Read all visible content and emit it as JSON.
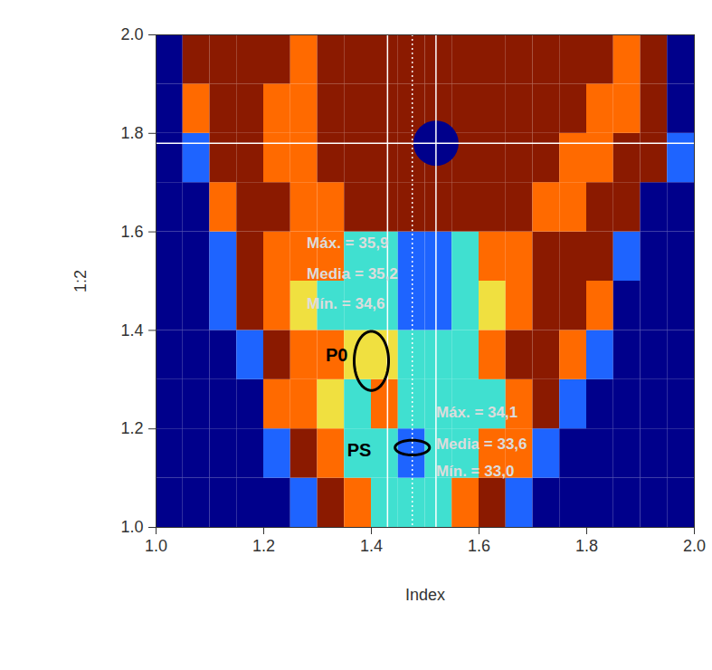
{
  "chart_data": {
    "type": "heatmap",
    "x_label": "Index",
    "y_label": "1:2",
    "xlim": [
      1,
      2
    ],
    "ylim": [
      1,
      2
    ],
    "xticks": [
      {
        "value": 1,
        "label": "1.0"
      },
      {
        "value": 1.2,
        "label": "1.2"
      },
      {
        "value": 1.4,
        "label": "1.4"
      },
      {
        "value": 1.6,
        "label": "1.6"
      },
      {
        "value": 1.8,
        "label": "1.8"
      },
      {
        "value": 2,
        "label": "2.0"
      }
    ],
    "yticks": [
      {
        "value": 1,
        "label": "1.0"
      },
      {
        "value": 1.2,
        "label": "1.2"
      },
      {
        "value": 1.4,
        "label": "1.4"
      },
      {
        "value": 1.6,
        "label": "1.6"
      },
      {
        "value": 1.8,
        "label": "1.8"
      },
      {
        "value": 2,
        "label": "2.0"
      }
    ],
    "colors": [
      "#00008b",
      "#1e64ff",
      "#40e0d0",
      "#f0e040",
      "#ff6a00",
      "#8b1a00"
    ],
    "cell_x_edges": [
      1,
      1.05,
      1.1,
      1.15,
      1.2,
      1.25,
      1.3,
      1.35,
      1.4,
      1.45,
      1.5,
      1.55,
      1.6,
      1.65,
      1.7,
      1.75,
      1.8,
      1.85,
      1.9,
      1.95,
      2
    ],
    "cell_y_edges": [
      1,
      1.1,
      1.2,
      1.3,
      1.4,
      1.5,
      1.6,
      1.7,
      1.8,
      1.9,
      2
    ],
    "cells": [
      [
        0,
        0,
        0,
        0,
        0,
        1,
        5,
        4,
        2,
        2,
        2,
        4,
        5,
        1,
        0,
        0,
        0,
        0,
        0,
        0
      ],
      [
        0,
        0,
        0,
        0,
        1,
        5,
        4,
        2,
        2,
        1,
        2,
        2,
        4,
        4,
        1,
        0,
        0,
        0,
        0,
        0
      ],
      [
        0,
        0,
        0,
        0,
        4,
        4,
        3,
        2,
        4,
        2,
        2,
        2,
        2,
        4,
        5,
        1,
        0,
        0,
        0,
        0
      ],
      [
        0,
        0,
        0,
        1,
        5,
        4,
        4,
        3,
        3,
        2,
        2,
        2,
        4,
        5,
        5,
        4,
        1,
        0,
        0,
        0
      ],
      [
        0,
        0,
        1,
        5,
        4,
        3,
        2,
        2,
        2,
        1,
        1,
        2,
        3,
        4,
        5,
        5,
        4,
        0,
        0,
        0
      ],
      [
        0,
        0,
        1,
        5,
        4,
        4,
        4,
        2,
        2,
        1,
        1,
        2,
        4,
        4,
        5,
        5,
        5,
        1,
        0,
        0
      ],
      [
        0,
        0,
        4,
        5,
        5,
        4,
        4,
        5,
        5,
        5,
        5,
        5,
        5,
        5,
        4,
        4,
        5,
        5,
        0,
        0
      ],
      [
        0,
        1,
        5,
        5,
        4,
        4,
        5,
        5,
        5,
        5,
        5,
        5,
        5,
        5,
        5,
        4,
        4,
        5,
        5,
        1
      ],
      [
        0,
        4,
        5,
        5,
        4,
        4,
        5,
        5,
        5,
        5,
        5,
        5,
        5,
        5,
        5,
        5,
        4,
        4,
        5,
        0
      ],
      [
        0,
        5,
        5,
        5,
        5,
        4,
        5,
        5,
        5,
        5,
        5,
        5,
        5,
        5,
        5,
        5,
        5,
        4,
        5,
        0
      ]
    ],
    "hlines": [
      1.78
    ],
    "vlines": [
      {
        "x": 1.43,
        "line_style": "solid"
      },
      {
        "x": 1.476,
        "line_style": "dotted"
      },
      {
        "x": 1.52,
        "line_style": "solid"
      }
    ],
    "circles": [
      {
        "x": 1.52,
        "y": 1.78,
        "r": 0.042,
        "color": "#00008b"
      }
    ],
    "ellipses": [
      {
        "label": "P0",
        "x": 1.4,
        "y": 1.338,
        "rx": 0.032,
        "ry": 0.06,
        "label_x": 1.315,
        "label_y": 1.35
      },
      {
        "label": "PS",
        "x": 1.476,
        "y": 1.162,
        "rx": 0.032,
        "ry": 0.015,
        "label_x": 1.355,
        "label_y": 1.156
      }
    ],
    "annotations": [
      {
        "text": "Máx. = 35,9",
        "x": 1.28,
        "y": 1.577
      },
      {
        "text": "Media = 35,2",
        "x": 1.28,
        "y": 1.515
      },
      {
        "text": "Mín. = 34,6",
        "x": 1.28,
        "y": 1.454
      },
      {
        "text": "Máx. = 34,1",
        "x": 1.52,
        "y": 1.233
      },
      {
        "text": "Media = 33,6",
        "x": 1.52,
        "y": 1.169
      },
      {
        "text": "Mín. = 33,0",
        "x": 1.52,
        "y": 1.114
      }
    ]
  }
}
